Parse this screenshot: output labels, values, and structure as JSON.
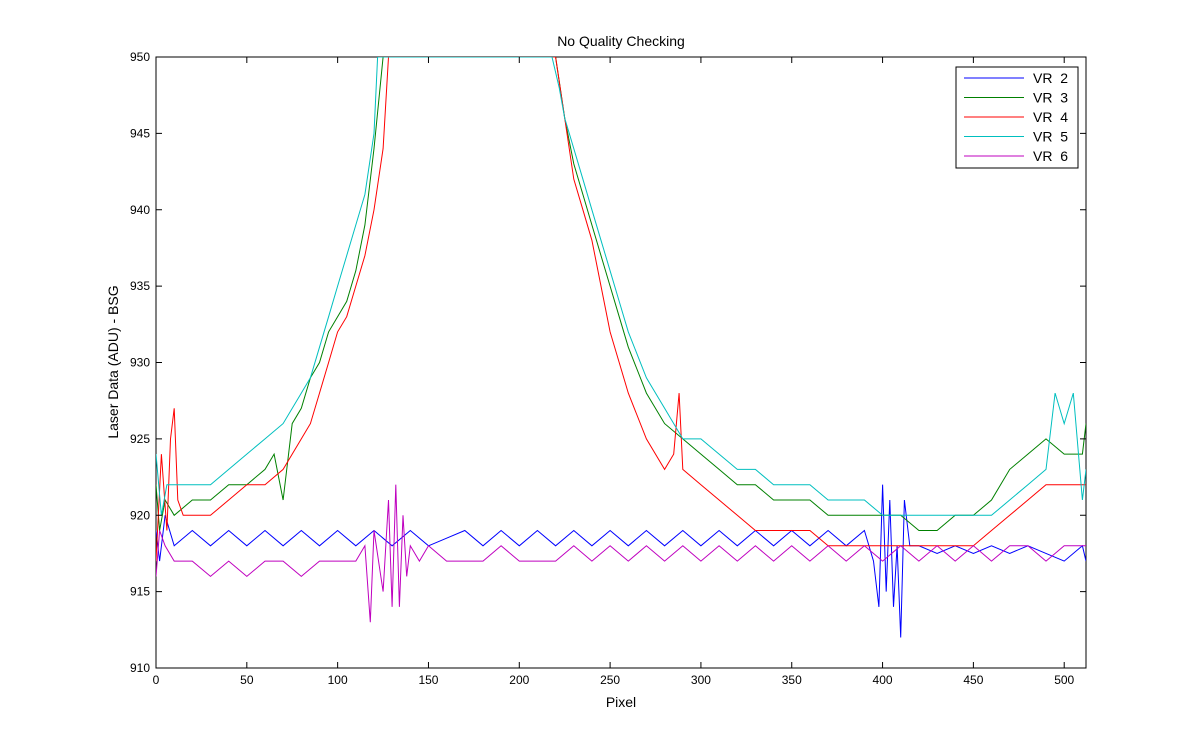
{
  "chart_data": {
    "type": "line",
    "title": "No Quality Checking",
    "xlabel": "Pixel",
    "ylabel": "Laser Data (ADU) - BSG",
    "xlim": [
      0,
      512
    ],
    "ylim": [
      910,
      950
    ],
    "xticks": [
      0,
      50,
      100,
      150,
      200,
      250,
      300,
      350,
      400,
      450,
      500
    ],
    "yticks": [
      910,
      915,
      920,
      925,
      930,
      935,
      940,
      945,
      950
    ],
    "grid": false,
    "legend_position": "top-right",
    "series": [
      {
        "name": "VR  2",
        "color": "#0000ff",
        "x": [
          0,
          2,
          5,
          10,
          20,
          30,
          40,
          50,
          60,
          70,
          80,
          90,
          100,
          110,
          120,
          130,
          140,
          150,
          160,
          170,
          180,
          190,
          200,
          210,
          220,
          230,
          240,
          250,
          260,
          270,
          280,
          290,
          300,
          310,
          320,
          330,
          340,
          350,
          360,
          370,
          380,
          390,
          395,
          398,
          400,
          402,
          404,
          406,
          408,
          410,
          412,
          415,
          420,
          430,
          440,
          450,
          460,
          470,
          480,
          490,
          500,
          510,
          512
        ],
        "values": [
          919,
          917,
          920,
          918,
          919,
          918,
          919,
          918,
          919,
          918,
          919,
          918,
          919,
          918,
          919,
          918,
          919,
          918,
          918.5,
          919,
          918,
          919,
          918,
          919,
          918,
          919,
          918,
          919,
          918,
          919,
          918,
          919,
          918,
          919,
          918,
          919,
          918,
          919,
          918,
          919,
          918,
          919,
          917,
          914,
          922,
          915,
          921,
          914,
          918,
          912,
          921,
          918,
          918,
          917.5,
          918,
          917.5,
          918,
          917.5,
          918,
          917.5,
          917,
          918,
          917
        ]
      },
      {
        "name": "VR  3",
        "color": "#008000",
        "x": [
          0,
          2,
          5,
          10,
          20,
          30,
          40,
          50,
          60,
          65,
          70,
          75,
          80,
          85,
          90,
          95,
          100,
          105,
          110,
          115,
          120,
          125,
          220,
          225,
          230,
          235,
          240,
          245,
          250,
          255,
          260,
          270,
          280,
          290,
          300,
          310,
          320,
          330,
          340,
          350,
          360,
          370,
          380,
          390,
          400,
          410,
          420,
          430,
          440,
          450,
          460,
          470,
          480,
          490,
          500,
          510,
          512
        ],
        "values": [
          922,
          919,
          921,
          920,
          921,
          921,
          922,
          922,
          923,
          924,
          921,
          926,
          927,
          929,
          930,
          932,
          933,
          934,
          936,
          939,
          944,
          950,
          950,
          946,
          943,
          941,
          939,
          937,
          935,
          933,
          931,
          928,
          926,
          925,
          924,
          923,
          922,
          922,
          921,
          921,
          921,
          920,
          920,
          920,
          920,
          920,
          919,
          919,
          920,
          920,
          921,
          923,
          924,
          925,
          924,
          924,
          926
        ]
      },
      {
        "name": "VR  4",
        "color": "#ff0000",
        "x": [
          0,
          3,
          6,
          8,
          10,
          12,
          15,
          20,
          30,
          40,
          50,
          60,
          70,
          75,
          80,
          85,
          90,
          95,
          100,
          105,
          110,
          115,
          120,
          125,
          128,
          220,
          225,
          230,
          235,
          240,
          245,
          250,
          255,
          260,
          270,
          280,
          285,
          288,
          290,
          300,
          310,
          320,
          330,
          340,
          350,
          360,
          370,
          380,
          390,
          400,
          410,
          420,
          430,
          440,
          450,
          460,
          470,
          480,
          490,
          500,
          510,
          512
        ],
        "values": [
          917,
          924,
          919,
          925,
          927,
          921,
          920,
          920,
          920,
          921,
          922,
          922,
          923,
          924,
          925,
          926,
          928,
          930,
          932,
          933,
          935,
          937,
          940,
          944,
          950,
          950,
          946,
          942,
          940,
          938,
          935,
          932,
          930,
          928,
          925,
          923,
          924,
          928,
          923,
          922,
          921,
          920,
          919,
          919,
          919,
          919,
          918,
          918,
          918,
          918,
          918,
          918,
          918,
          918,
          918,
          919,
          920,
          921,
          922,
          922,
          922,
          922
        ]
      },
      {
        "name": "VR  5",
        "color": "#00bfbf",
        "x": [
          0,
          3,
          6,
          10,
          20,
          30,
          40,
          50,
          60,
          70,
          80,
          85,
          90,
          95,
          100,
          105,
          110,
          115,
          120,
          122,
          218,
          222,
          225,
          230,
          235,
          240,
          245,
          250,
          255,
          260,
          270,
          280,
          290,
          300,
          310,
          320,
          330,
          340,
          350,
          360,
          370,
          380,
          390,
          400,
          410,
          420,
          430,
          440,
          450,
          460,
          470,
          480,
          490,
          495,
          500,
          505,
          510,
          512
        ],
        "values": [
          924,
          920,
          922,
          922,
          922,
          922,
          923,
          924,
          925,
          926,
          928,
          929,
          931,
          933,
          935,
          937,
          939,
          941,
          945,
          950,
          950,
          948,
          946,
          944,
          942,
          940,
          938,
          936,
          934,
          932,
          929,
          927,
          925,
          925,
          924,
          923,
          923,
          922,
          922,
          922,
          921,
          921,
          921,
          920,
          920,
          920,
          920,
          920,
          920,
          920,
          921,
          922,
          923,
          928,
          926,
          928,
          921,
          923
        ]
      },
      {
        "name": "VR  6",
        "color": "#bf00bf",
        "x": [
          0,
          2,
          5,
          10,
          20,
          30,
          40,
          50,
          60,
          70,
          80,
          90,
          100,
          110,
          115,
          118,
          120,
          125,
          128,
          130,
          132,
          134,
          136,
          138,
          140,
          145,
          150,
          160,
          170,
          180,
          190,
          200,
          210,
          220,
          230,
          240,
          250,
          260,
          270,
          280,
          290,
          300,
          310,
          320,
          330,
          340,
          350,
          360,
          370,
          380,
          390,
          400,
          410,
          420,
          430,
          440,
          450,
          460,
          470,
          480,
          490,
          500,
          510,
          512
        ],
        "values": [
          916,
          919,
          918,
          917,
          917,
          916,
          917,
          916,
          917,
          917,
          916,
          917,
          917,
          917,
          918,
          913,
          919,
          915,
          921,
          914,
          922,
          914,
          920,
          916,
          918,
          917,
          918,
          917,
          917,
          917,
          918,
          917,
          917,
          917,
          918,
          917,
          918,
          917,
          918,
          917,
          918,
          917,
          918,
          917,
          918,
          917,
          918,
          917,
          918,
          917,
          918,
          917,
          918,
          917,
          918,
          917,
          918,
          917,
          918,
          918,
          917,
          918,
          918,
          918
        ]
      }
    ]
  }
}
